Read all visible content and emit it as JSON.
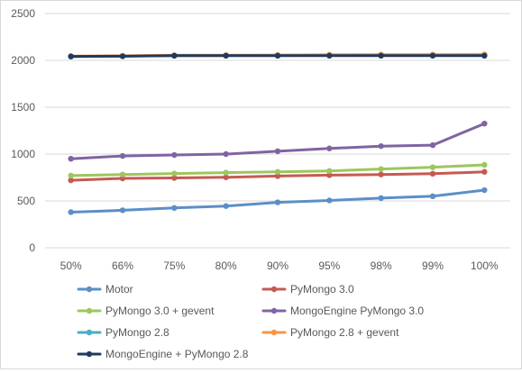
{
  "chart_data": {
    "type": "line",
    "categories": [
      "50%",
      "66%",
      "75%",
      "80%",
      "90%",
      "95%",
      "98%",
      "99%",
      "100%"
    ],
    "ylim": [
      0,
      2500
    ],
    "yticks": [
      "0",
      "500",
      "1000",
      "1500",
      "2000",
      "2500"
    ],
    "ytick_values": [
      0,
      500,
      1000,
      1500,
      2000,
      2500
    ],
    "grid": "horizontal",
    "legend_position": "bottom",
    "series": [
      {
        "name": "Motor",
        "color": "#5b8fc7",
        "values": [
          380,
          400,
          425,
          445,
          485,
          505,
          530,
          550,
          615
        ]
      },
      {
        "name": "PyMongo 3.0",
        "color": "#c55a51",
        "values": [
          720,
          740,
          745,
          752,
          765,
          775,
          782,
          790,
          810
        ]
      },
      {
        "name": "PyMongo 3.0 + gevent",
        "color": "#9dc65e",
        "values": [
          770,
          782,
          792,
          802,
          810,
          820,
          840,
          860,
          885
        ]
      },
      {
        "name": "MongoEngine PyMongo 3.0",
        "color": "#8064a2",
        "values": [
          950,
          980,
          990,
          1000,
          1030,
          1060,
          1085,
          1095,
          1325
        ]
      },
      {
        "name": "PyMongo 2.8",
        "color": "#4bacc6",
        "values": [
          2040,
          2045,
          2050,
          2052,
          2052,
          2053,
          2054,
          2055,
          2055
        ]
      },
      {
        "name": "PyMongo 2.8 + gevent",
        "color": "#f79646",
        "values": [
          2045,
          2048,
          2055,
          2056,
          2057,
          2060,
          2062,
          2062,
          2063
        ]
      },
      {
        "name": "MongoEngine + PyMongo 2.8",
        "color": "#1f3a5f",
        "values": [
          2042,
          2044,
          2050,
          2050,
          2050,
          2050,
          2050,
          2050,
          2050
        ]
      }
    ]
  }
}
